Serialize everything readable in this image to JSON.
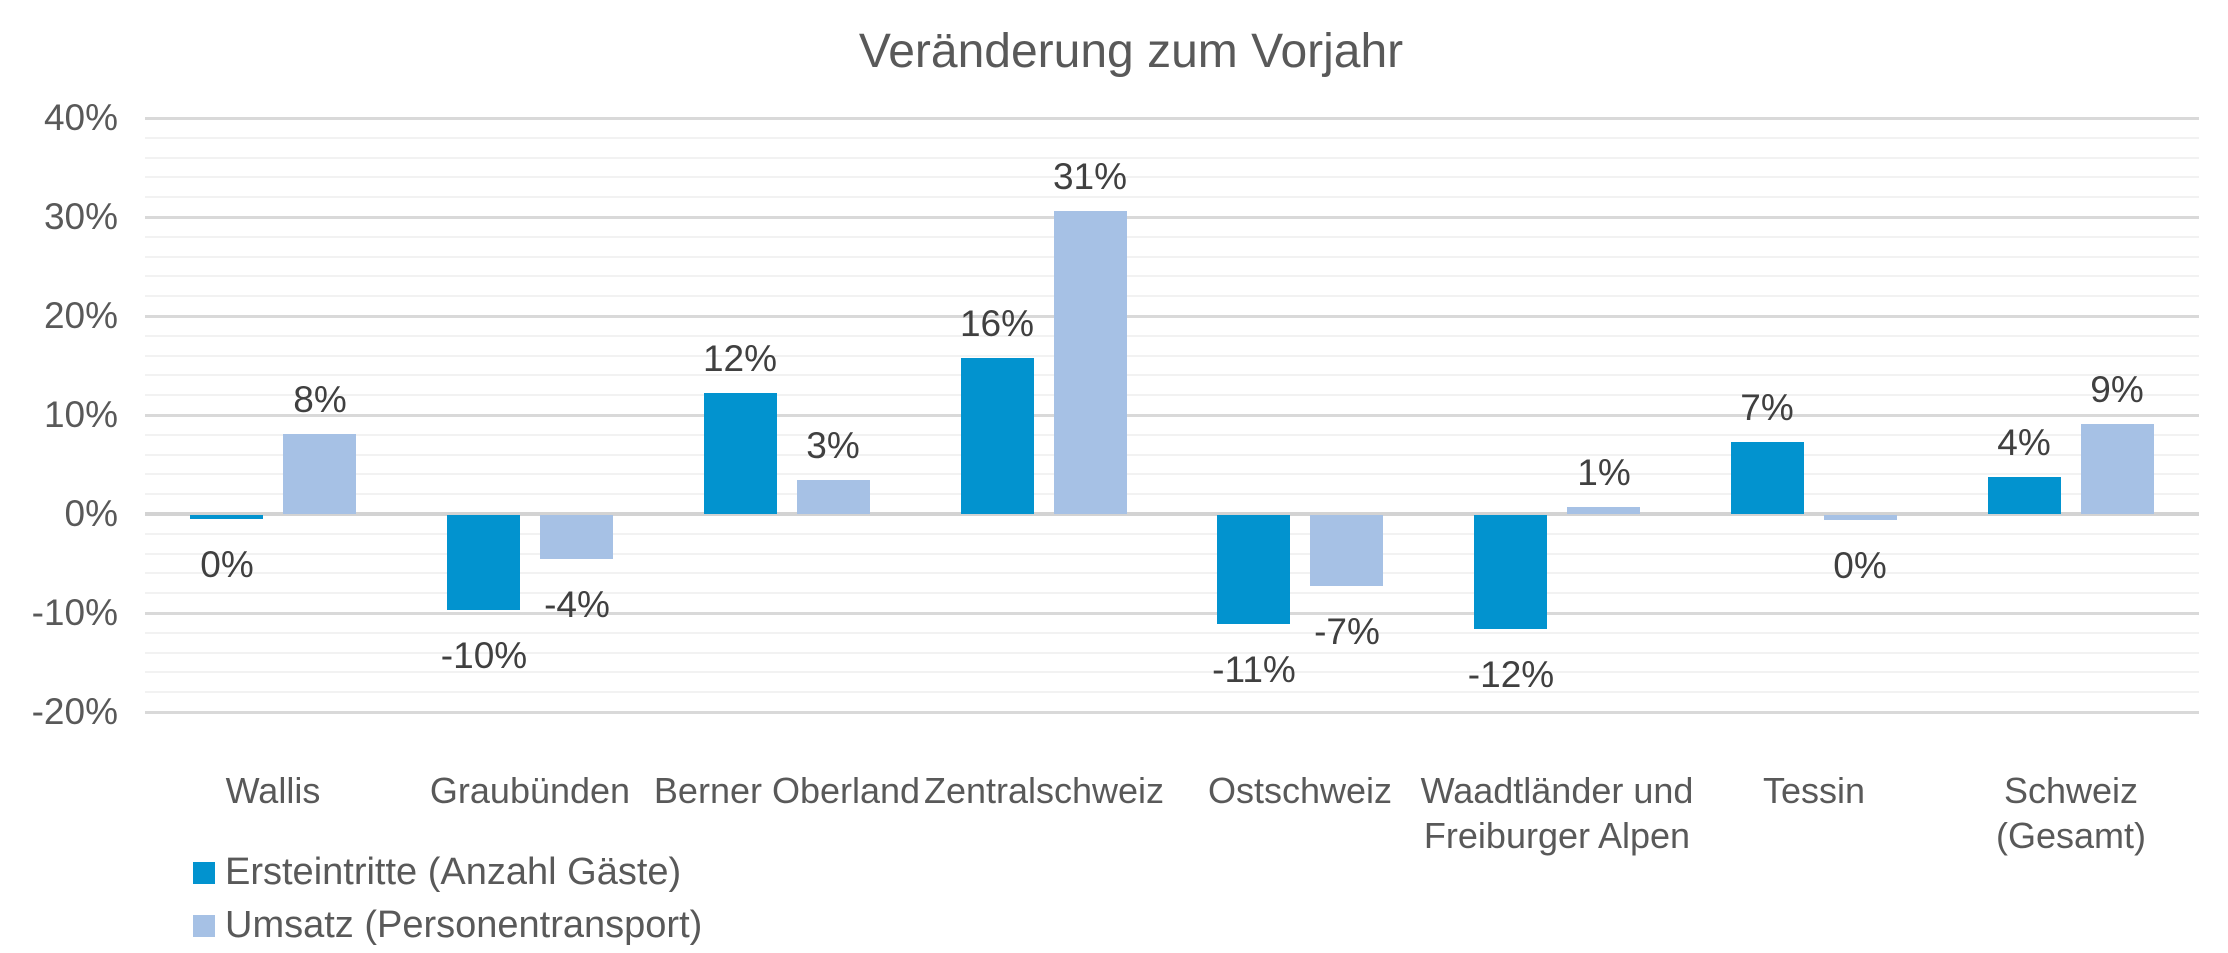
{
  "title": "Veränderung zum Vorjahr",
  "colors": {
    "series1": "#0293CF",
    "series2": "#A6C1E5",
    "text": "#595959",
    "data_label": "#404040",
    "gridline_major": "#D9D9D9",
    "gridline_minor": "#F2F2F2",
    "zero_line": "#D3D3D3",
    "background": "#FFFFFF"
  },
  "y_axis": {
    "ticks": [
      {
        "label": "40%",
        "value": 40
      },
      {
        "label": "30%",
        "value": 30
      },
      {
        "label": "20%",
        "value": 20
      },
      {
        "label": "10%",
        "value": 10
      },
      {
        "label": "0%",
        "value": 0
      },
      {
        "label": "-10%",
        "value": -10
      },
      {
        "label": "-20%",
        "value": -20
      }
    ],
    "max": 40,
    "min": -20,
    "major_unit": 10,
    "minor_unit": 2
  },
  "chart_data": {
    "type": "bar",
    "title": "Veränderung zum Vorjahr",
    "categories": [
      "Wallis",
      "Graubünden",
      "Berner Oberland",
      "Zentralschweiz",
      "Ostschweiz",
      "Waadtländer und Freiburger Alpen",
      "Tessin",
      "Schweiz (Gesamt)"
    ],
    "categories_display": [
      "Wallis",
      "Graubünden",
      "Berner Oberland",
      "Zentralschweiz",
      "Ostschweiz",
      "Waadtländer und\nFreiburger Alpen",
      "Tessin",
      "Schweiz\n(Gesamt)"
    ],
    "series": [
      {
        "name": "Ersteintritte (Anzahl Gäste)",
        "color": "#0293CF",
        "values": [
          0,
          -10,
          12,
          16,
          -11,
          -12,
          7,
          4
        ],
        "labels": [
          "0%",
          "-10%",
          "12%",
          "16%",
          "-11%",
          "-12%",
          "7%",
          "4%"
        ],
        "bar_values": [
          -0.4,
          -9.6,
          12.2,
          15.8,
          -11.0,
          -11.5,
          7.3,
          3.7
        ]
      },
      {
        "name": "Umsatz (Personentransport)",
        "color": "#A6C1E5",
        "values": [
          8,
          -4,
          3,
          31,
          -7,
          1,
          0,
          9
        ],
        "labels": [
          "8%",
          "-4%",
          "3%",
          "31%",
          "-7%",
          "1%",
          "0%",
          "9%"
        ],
        "bar_values": [
          8.1,
          -4.4,
          3.4,
          30.6,
          -7.2,
          0.7,
          -0.5,
          9.1
        ]
      }
    ],
    "ylim": [
      -20,
      40
    ],
    "grid": true,
    "legend_position": "bottom-left"
  }
}
